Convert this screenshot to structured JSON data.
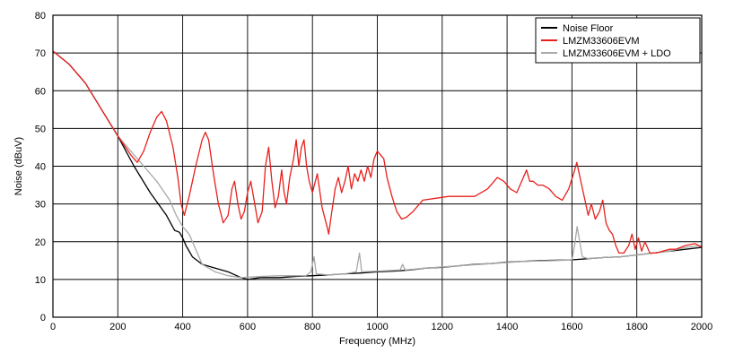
{
  "chart_data": {
    "type": "line",
    "title": "",
    "xlabel": "Frequency (MHz)",
    "ylabel": "Noise (dBuV)",
    "xlim": [
      0,
      2000
    ],
    "ylim": [
      0,
      80
    ],
    "x_ticks": [
      0,
      200,
      400,
      600,
      800,
      1000,
      1200,
      1400,
      1600,
      1800,
      2000
    ],
    "y_ticks": [
      0,
      10,
      20,
      30,
      40,
      50,
      60,
      70,
      80
    ],
    "grid": true,
    "legend_position": "top-right",
    "series": [
      {
        "name": "Noise Floor",
        "color": "#000000",
        "points": [
          [
            0,
            70.5
          ],
          [
            50,
            67
          ],
          [
            100,
            62
          ],
          [
            150,
            55
          ],
          [
            200,
            48
          ],
          [
            250,
            40
          ],
          [
            300,
            33
          ],
          [
            350,
            27
          ],
          [
            375,
            23
          ],
          [
            390,
            22.5
          ],
          [
            400,
            21
          ],
          [
            410,
            19
          ],
          [
            430,
            16
          ],
          [
            460,
            14
          ],
          [
            500,
            13
          ],
          [
            540,
            12
          ],
          [
            580,
            10.5
          ],
          [
            600,
            10
          ],
          [
            640,
            10.5
          ],
          [
            700,
            10.5
          ],
          [
            750,
            10.8
          ],
          [
            800,
            11
          ],
          [
            850,
            11.2
          ],
          [
            900,
            11.5
          ],
          [
            950,
            11.7
          ],
          [
            1000,
            12
          ],
          [
            1050,
            12.2
          ],
          [
            1100,
            12.5
          ],
          [
            1150,
            13
          ],
          [
            1200,
            13.2
          ],
          [
            1250,
            13.6
          ],
          [
            1300,
            14
          ],
          [
            1350,
            14.2
          ],
          [
            1400,
            14.6
          ],
          [
            1450,
            14.8
          ],
          [
            1500,
            15
          ],
          [
            1550,
            15.1
          ],
          [
            1600,
            15.2
          ],
          [
            1650,
            15.5
          ],
          [
            1700,
            15.8
          ],
          [
            1750,
            16
          ],
          [
            1800,
            16.5
          ],
          [
            1850,
            17
          ],
          [
            1900,
            17.5
          ],
          [
            1950,
            18
          ],
          [
            2000,
            18.5
          ]
        ]
      },
      {
        "name": "LMZM33606EVM",
        "color": "#e8201c",
        "points": [
          [
            0,
            70.5
          ],
          [
            50,
            67
          ],
          [
            100,
            62
          ],
          [
            150,
            55
          ],
          [
            200,
            48
          ],
          [
            240,
            43
          ],
          [
            260,
            41
          ],
          [
            280,
            44
          ],
          [
            300,
            49
          ],
          [
            320,
            53
          ],
          [
            335,
            54.5
          ],
          [
            350,
            52
          ],
          [
            370,
            45
          ],
          [
            385,
            37
          ],
          [
            395,
            30
          ],
          [
            405,
            27
          ],
          [
            420,
            32
          ],
          [
            440,
            40
          ],
          [
            460,
            47
          ],
          [
            470,
            49
          ],
          [
            480,
            47
          ],
          [
            495,
            38
          ],
          [
            510,
            30
          ],
          [
            525,
            25
          ],
          [
            540,
            27
          ],
          [
            552,
            34
          ],
          [
            560,
            36
          ],
          [
            570,
            30
          ],
          [
            580,
            26
          ],
          [
            590,
            28
          ],
          [
            600,
            33
          ],
          [
            610,
            36
          ],
          [
            622,
            30
          ],
          [
            632,
            25
          ],
          [
            645,
            28
          ],
          [
            655,
            40
          ],
          [
            665,
            45
          ],
          [
            675,
            36
          ],
          [
            685,
            29
          ],
          [
            695,
            32
          ],
          [
            705,
            39
          ],
          [
            713,
            33
          ],
          [
            720,
            30
          ],
          [
            730,
            37
          ],
          [
            742,
            42
          ],
          [
            750,
            47
          ],
          [
            758,
            40
          ],
          [
            766,
            45
          ],
          [
            774,
            47
          ],
          [
            782,
            40
          ],
          [
            790,
            36
          ],
          [
            800,
            33
          ],
          [
            815,
            38
          ],
          [
            830,
            29
          ],
          [
            845,
            24
          ],
          [
            850,
            22
          ],
          [
            858,
            27
          ],
          [
            870,
            34
          ],
          [
            880,
            37
          ],
          [
            890,
            33
          ],
          [
            900,
            36
          ],
          [
            910,
            40
          ],
          [
            920,
            34
          ],
          [
            930,
            38
          ],
          [
            940,
            36
          ],
          [
            950,
            39
          ],
          [
            960,
            36
          ],
          [
            970,
            40
          ],
          [
            980,
            37
          ],
          [
            990,
            42
          ],
          [
            1000,
            44
          ],
          [
            1010,
            43
          ],
          [
            1020,
            42
          ],
          [
            1030,
            37
          ],
          [
            1045,
            32
          ],
          [
            1060,
            28
          ],
          [
            1075,
            26
          ],
          [
            1090,
            26.5
          ],
          [
            1110,
            28
          ],
          [
            1140,
            31
          ],
          [
            1180,
            31.5
          ],
          [
            1220,
            32
          ],
          [
            1260,
            32
          ],
          [
            1300,
            32
          ],
          [
            1340,
            34
          ],
          [
            1370,
            37
          ],
          [
            1390,
            36
          ],
          [
            1410,
            34
          ],
          [
            1430,
            33
          ],
          [
            1450,
            37
          ],
          [
            1460,
            39
          ],
          [
            1470,
            36
          ],
          [
            1480,
            36
          ],
          [
            1495,
            35
          ],
          [
            1510,
            35
          ],
          [
            1530,
            34
          ],
          [
            1550,
            32
          ],
          [
            1570,
            31
          ],
          [
            1590,
            34
          ],
          [
            1605,
            38
          ],
          [
            1615,
            41
          ],
          [
            1625,
            37
          ],
          [
            1640,
            31
          ],
          [
            1650,
            27
          ],
          [
            1660,
            30
          ],
          [
            1672,
            26
          ],
          [
            1685,
            28
          ],
          [
            1695,
            31
          ],
          [
            1705,
            25
          ],
          [
            1715,
            23
          ],
          [
            1725,
            22
          ],
          [
            1735,
            19
          ],
          [
            1745,
            17
          ],
          [
            1760,
            17
          ],
          [
            1775,
            19
          ],
          [
            1785,
            22
          ],
          [
            1795,
            18
          ],
          [
            1805,
            21
          ],
          [
            1815,
            17.5
          ],
          [
            1825,
            20
          ],
          [
            1840,
            17
          ],
          [
            1860,
            17
          ],
          [
            1880,
            17.5
          ],
          [
            1900,
            18
          ],
          [
            1920,
            18
          ],
          [
            1950,
            19
          ],
          [
            1980,
            19.5
          ],
          [
            2000,
            18.5
          ]
        ]
      },
      {
        "name": "LMZM33606EVM + LDO",
        "color": "#a8a8a8",
        "points": [
          [
            0,
            70.5
          ],
          [
            50,
            67
          ],
          [
            100,
            62
          ],
          [
            150,
            55
          ],
          [
            200,
            48
          ],
          [
            240,
            44
          ],
          [
            280,
            40
          ],
          [
            320,
            36
          ],
          [
            360,
            31
          ],
          [
            380,
            27
          ],
          [
            400,
            24
          ],
          [
            420,
            22
          ],
          [
            440,
            18
          ],
          [
            460,
            14
          ],
          [
            480,
            13
          ],
          [
            500,
            12
          ],
          [
            540,
            11
          ],
          [
            580,
            10.5
          ],
          [
            640,
            10.8
          ],
          [
            700,
            11
          ],
          [
            780,
            11
          ],
          [
            795,
            12
          ],
          [
            805,
            16
          ],
          [
            812,
            11.5
          ],
          [
            850,
            11.2
          ],
          [
            900,
            11.5
          ],
          [
            935,
            12
          ],
          [
            945,
            17
          ],
          [
            952,
            12
          ],
          [
            1000,
            12.2
          ],
          [
            1070,
            12.5
          ],
          [
            1078,
            14
          ],
          [
            1086,
            12.5
          ],
          [
            1150,
            13
          ],
          [
            1250,
            13.6
          ],
          [
            1350,
            14.2
          ],
          [
            1450,
            14.8
          ],
          [
            1550,
            15
          ],
          [
            1600,
            15.2
          ],
          [
            1608,
            19
          ],
          [
            1616,
            24
          ],
          [
            1624,
            20
          ],
          [
            1632,
            16
          ],
          [
            1650,
            15.5
          ],
          [
            1700,
            15.8
          ],
          [
            1750,
            16
          ],
          [
            1800,
            16.5
          ],
          [
            1850,
            17
          ],
          [
            1900,
            17.5
          ],
          [
            1950,
            18.5
          ],
          [
            2000,
            19
          ]
        ]
      }
    ]
  }
}
